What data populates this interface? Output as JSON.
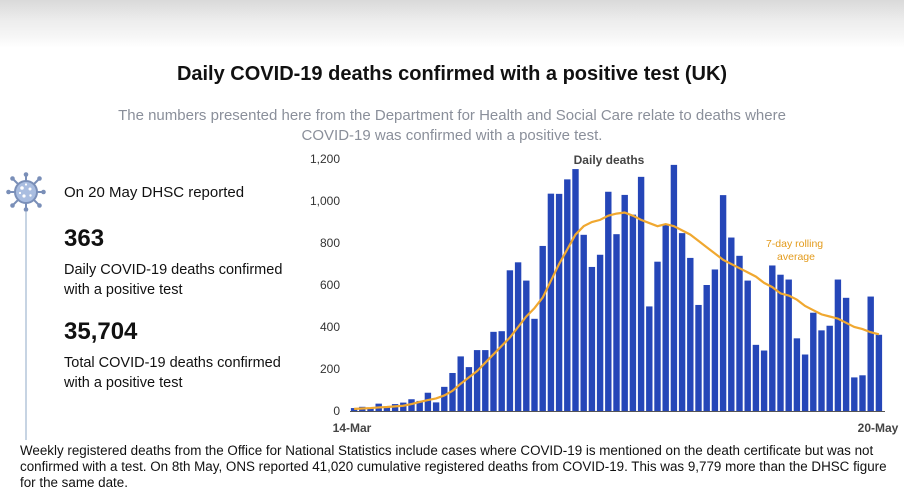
{
  "title": "Daily COVID-19 deaths confirmed with a positive test (UK)",
  "subtitle": "The numbers presented here from the Department for Health and Social Care relate to deaths where COVID-19 was confirmed with a positive test.",
  "summary": {
    "reported_label": "On 20 May DHSC reported",
    "daily_value": "363",
    "daily_desc": "Daily COVID-19 deaths confirmed with a positive test",
    "total_value": "35,704",
    "total_desc": "Total COVID-19 deaths confirmed with a positive test"
  },
  "footer": "Weekly registered deaths from the Office for National Statistics include cases where COVID-19 is mentioned on the death certificate but was not confirmed with a test. On 8th May, ONS reported 41,020 cumulative registered deaths from COVID-19. This was 9,779 more than the DHSC figure for the same date.",
  "chart_data": {
    "type": "bar",
    "series_label": "Daily deaths",
    "line_label": "7-day rolling average",
    "x_start_label": "14-Mar",
    "x_end_label": "20-May",
    "ylim": [
      0,
      1200
    ],
    "yticks": [
      "0",
      "200",
      "400",
      "600",
      "800",
      "1,000",
      "1,200"
    ],
    "bar_color": "#2546b8",
    "line_color": "#f0a830",
    "values": [
      14,
      20,
      16,
      35,
      21,
      33,
      40,
      56,
      48,
      87,
      41,
      115,
      181,
      260,
      209,
      290,
      290,
      377,
      380,
      670,
      708,
      621,
      439,
      786,
      1035,
      1034,
      1103,
      1152,
      839,
      686,
      744,
      1044,
      842,
      1029,
      935,
      1115,
      498,
      711,
      888,
      1172,
      847,
      729,
      505,
      600,
      674,
      1028,
      826,
      739,
      621,
      315,
      288,
      693,
      649,
      626,
      346,
      269,
      468,
      384,
      406,
      626,
      539,
      160,
      170,
      545,
      363
    ],
    "rolling_avg": [
      10,
      12,
      14,
      17,
      19,
      22,
      25,
      33,
      43,
      52,
      60,
      74,
      96,
      130,
      160,
      190,
      230,
      270,
      310,
      350,
      400,
      450,
      490,
      540,
      620,
      700,
      770,
      840,
      880,
      900,
      910,
      930,
      940,
      945,
      930,
      910,
      895,
      880,
      890,
      880,
      860,
      840,
      810,
      780,
      750,
      720,
      700,
      680,
      660,
      640,
      610,
      590,
      560,
      550,
      530,
      500,
      480,
      460,
      450,
      440,
      420,
      400,
      390,
      375,
      365
    ]
  }
}
